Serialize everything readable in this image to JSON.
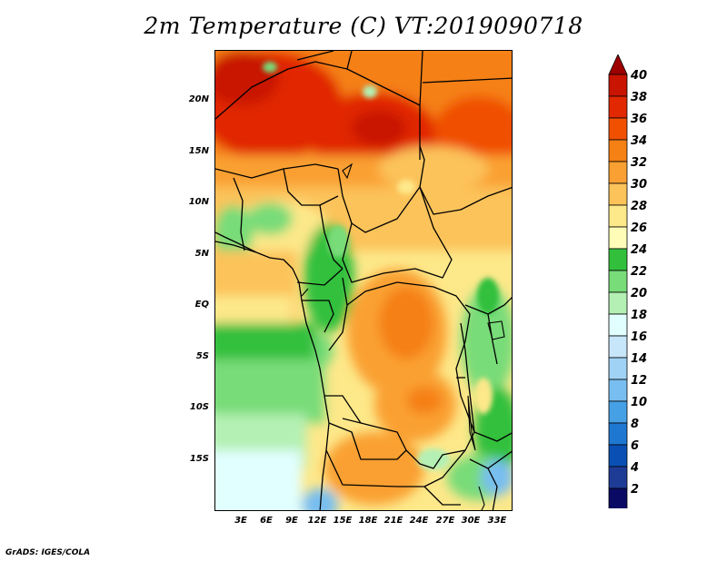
{
  "title": "2m Temperature (C) VT:2019090718",
  "credit": "GrADS: IGES/COLA",
  "map": {
    "lat_labels": [
      "20N",
      "15N",
      "10N",
      "5N",
      "EQ",
      "5S",
      "10S",
      "15S"
    ],
    "lon_labels": [
      "3E",
      "6E",
      "9E",
      "12E",
      "15E",
      "18E",
      "21E",
      "24E",
      "27E",
      "30E",
      "33E"
    ]
  },
  "colorbar": {
    "labels": [
      "40",
      "38",
      "36",
      "34",
      "32",
      "30",
      "28",
      "26",
      "24",
      "22",
      "20",
      "18",
      "16",
      "14",
      "12",
      "10",
      "8",
      "6",
      "4",
      "2"
    ],
    "colors": [
      "#9e0000",
      "#c81400",
      "#e12800",
      "#f05000",
      "#f58014",
      "#faa032",
      "#fcc35a",
      "#fde88a",
      "#fffcb8",
      "#32c03c",
      "#78dc78",
      "#b4f0b4",
      "#e1ffff",
      "#c8e6fa",
      "#a0d2f5",
      "#78bef0",
      "#46a0e6",
      "#1e78d2",
      "#0a50b4",
      "#1e3c96",
      "#0a0a64",
      "#e6e6fa"
    ]
  }
}
